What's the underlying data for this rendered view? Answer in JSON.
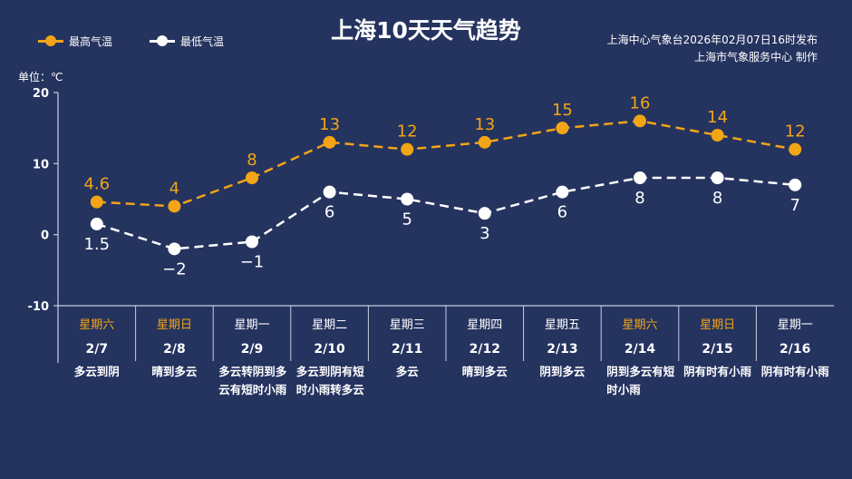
{
  "colors": {
    "background": "#25335f",
    "high": "#f2a516",
    "low": "#ffffff",
    "weekend": "#f2a516"
  },
  "chart_data": {
    "type": "line",
    "title": "上海10天天气趋势",
    "ylabel": "单位：℃",
    "ylim": [
      -10,
      20
    ],
    "yticks": [
      20,
      10,
      0,
      -10
    ],
    "grid": false,
    "legend": "top-left",
    "categories": [
      "2/7",
      "2/8",
      "2/9",
      "2/10",
      "2/11",
      "2/12",
      "2/13",
      "2/14",
      "2/15",
      "2/16"
    ],
    "weekdays": [
      "星期六",
      "星期日",
      "星期一",
      "星期二",
      "星期三",
      "星期四",
      "星期五",
      "星期六",
      "星期日",
      "星期一"
    ],
    "weekend": [
      true,
      true,
      false,
      false,
      false,
      false,
      false,
      true,
      true,
      false
    ],
    "weather": [
      "多云到阴",
      "晴到多云",
      "多云转阴到多云有短时小雨",
      "多云到阴有短时小雨转多云",
      "多云",
      "晴到多云",
      "阴到多云",
      "阴到多云有短时小雨",
      "阴有时有小雨",
      "阴有时有小雨"
    ],
    "series": [
      {
        "name": "最高气温",
        "values": [
          4.6,
          4,
          8,
          13,
          12,
          13,
          15,
          16,
          14,
          12
        ],
        "labels": [
          "4.6",
          "4",
          "8",
          "13",
          "12",
          "13",
          "15",
          "16",
          "14",
          "12"
        ]
      },
      {
        "name": "最低气温",
        "values": [
          1.5,
          -2,
          -1,
          6,
          5,
          3,
          6,
          8,
          8,
          7
        ],
        "labels": [
          "1.5",
          "−2",
          "−1",
          "6",
          "5",
          "3",
          "6",
          "8",
          "8",
          "7"
        ]
      }
    ]
  },
  "issuer": {
    "line1": "上海中心气象台2026年02月07日16时发布",
    "line2": "上海市气象服务中心  制作"
  }
}
